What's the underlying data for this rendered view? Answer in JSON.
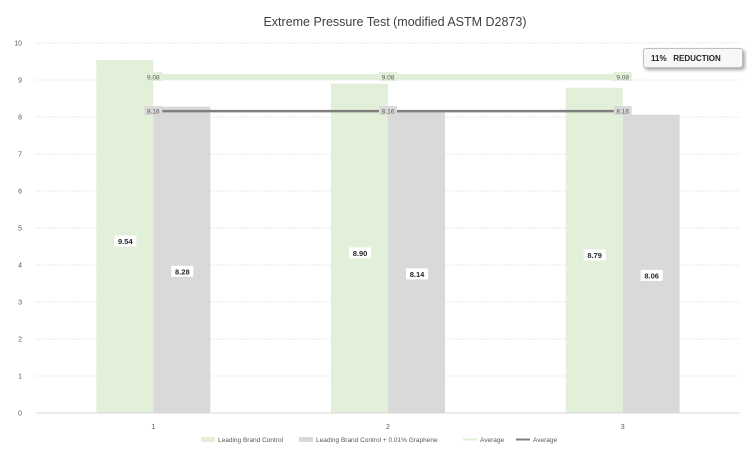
{
  "chart_data": {
    "type": "bar",
    "title": "Extreme Pressure Test (modified ASTM D2873)",
    "categories": [
      "1",
      "2",
      "3"
    ],
    "series": [
      {
        "name": "Leading Brand Control",
        "values": [
          9.54,
          8.9,
          8.79
        ],
        "color": "#e2efd9",
        "labels": [
          "9.54",
          "8.90",
          "8.79"
        ]
      },
      {
        "name": "Leading Brand Control + 0.01% Graphene",
        "values": [
          8.28,
          8.14,
          8.06
        ],
        "color": "#d9d9d9",
        "labels": [
          "8.28",
          "8.14",
          "8.06"
        ]
      }
    ],
    "averages": [
      {
        "name": "Average",
        "value": 9.08,
        "label": "9.08",
        "color": "#e2efd9"
      },
      {
        "name": "Average",
        "value": 8.16,
        "label": "8.16",
        "color": "#7f7f7f"
      }
    ],
    "ylim": [
      0,
      10
    ],
    "yticks": [
      "0",
      "1",
      "2",
      "3",
      "4",
      "5",
      "6",
      "7",
      "8",
      "9",
      "10"
    ],
    "grid": true,
    "legend_position": "bottom",
    "annotation": {
      "percent": "11%",
      "text": "REDUCTION"
    }
  }
}
